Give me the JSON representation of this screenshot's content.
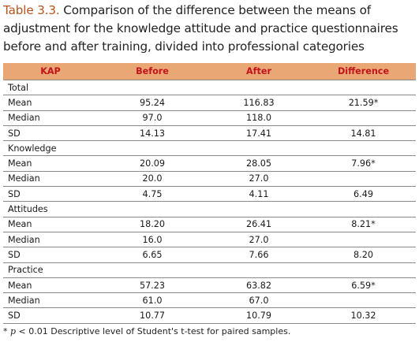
{
  "caption": {
    "label": "Table 3.3.",
    "text": " Comparison of the difference between the means of adjustment for the knowledge attitude and practice questionnaires before and after training, divided into professional categories"
  },
  "table": {
    "headers": [
      "KAP",
      "Before",
      "After",
      "Difference"
    ],
    "sections": [
      {
        "title": "Total",
        "rows": [
          {
            "stat": "Mean",
            "before": "95.24",
            "after": "116.83",
            "diff": "21.59*"
          },
          {
            "stat": "Median",
            "before": "97.0",
            "after": "118.0",
            "diff": ""
          },
          {
            "stat": "SD",
            "before": "14.13",
            "after": "17.41",
            "diff": "14.81"
          }
        ]
      },
      {
        "title": "Knowledge",
        "rows": [
          {
            "stat": "Mean",
            "before": "20.09",
            "after": "28.05",
            "diff": "7.96*"
          },
          {
            "stat": "Median",
            "before": "20.0",
            "after": "27.0",
            "diff": ""
          },
          {
            "stat": "SD",
            "before": "4.75",
            "after": "4.11",
            "diff": "6.49"
          }
        ]
      },
      {
        "title": "Attitudes",
        "rows": [
          {
            "stat": "Mean",
            "before": "18.20",
            "after": "26.41",
            "diff": "8.21*"
          },
          {
            "stat": "Median",
            "before": "16.0",
            "after": "27.0",
            "diff": ""
          },
          {
            "stat": "SD",
            "before": "6.65",
            "after": "7.66",
            "diff": "8.20"
          }
        ]
      },
      {
        "title": "Practice",
        "rows": [
          {
            "stat": "Mean",
            "before": "57.23",
            "after": "63.82",
            "diff": "6.59*"
          },
          {
            "stat": "Median",
            "before": "61.0",
            "after": "67.0",
            "diff": ""
          },
          {
            "stat": "SD",
            "before": "10.77",
            "after": "10.79",
            "diff": "10.32"
          }
        ]
      }
    ]
  },
  "footnote": {
    "marker": "* ",
    "p_symbol": "p",
    "text": " < 0.01 Descriptive level of Student's t-test for paired samples."
  },
  "colors": {
    "header_bg": "#eaa776",
    "header_text": "#c0141a",
    "caption_label": "#b6531c",
    "rule": "#8a8a8a"
  }
}
